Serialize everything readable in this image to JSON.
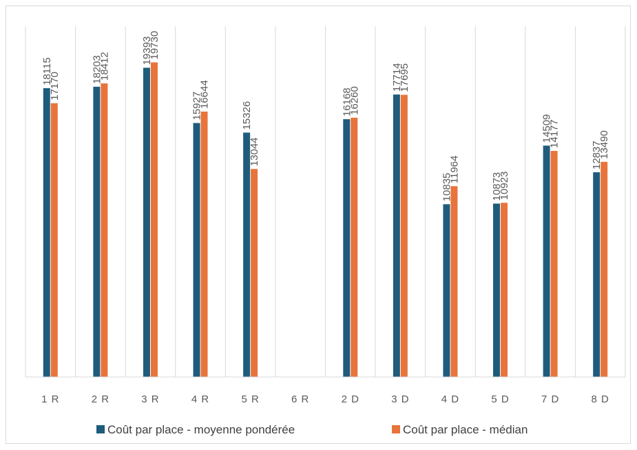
{
  "chart_data": {
    "type": "bar",
    "categories": [
      "1 R",
      "2 R",
      "3 R",
      "4 R",
      "5 R",
      "6 R",
      "2 D",
      "3 D",
      "4 D",
      "5 D",
      "7 D",
      "8 D"
    ],
    "series": [
      {
        "name": "Coût par place - moyenne pondérée",
        "color": "#1f5c7c",
        "values": [
          18115,
          18203,
          19393,
          15927,
          15326,
          null,
          16168,
          17714,
          10835,
          10873,
          14509,
          12837
        ]
      },
      {
        "name": "Coût par place - médian",
        "color": "#e8743b",
        "values": [
          17170,
          18412,
          19730,
          16644,
          13044,
          null,
          16260,
          17695,
          11964,
          10923,
          14177,
          13490
        ]
      }
    ],
    "title": "",
    "xlabel": "",
    "ylabel": "",
    "ylim": [
      0,
      22000
    ],
    "grid": "vertical",
    "legend": "bottom"
  }
}
